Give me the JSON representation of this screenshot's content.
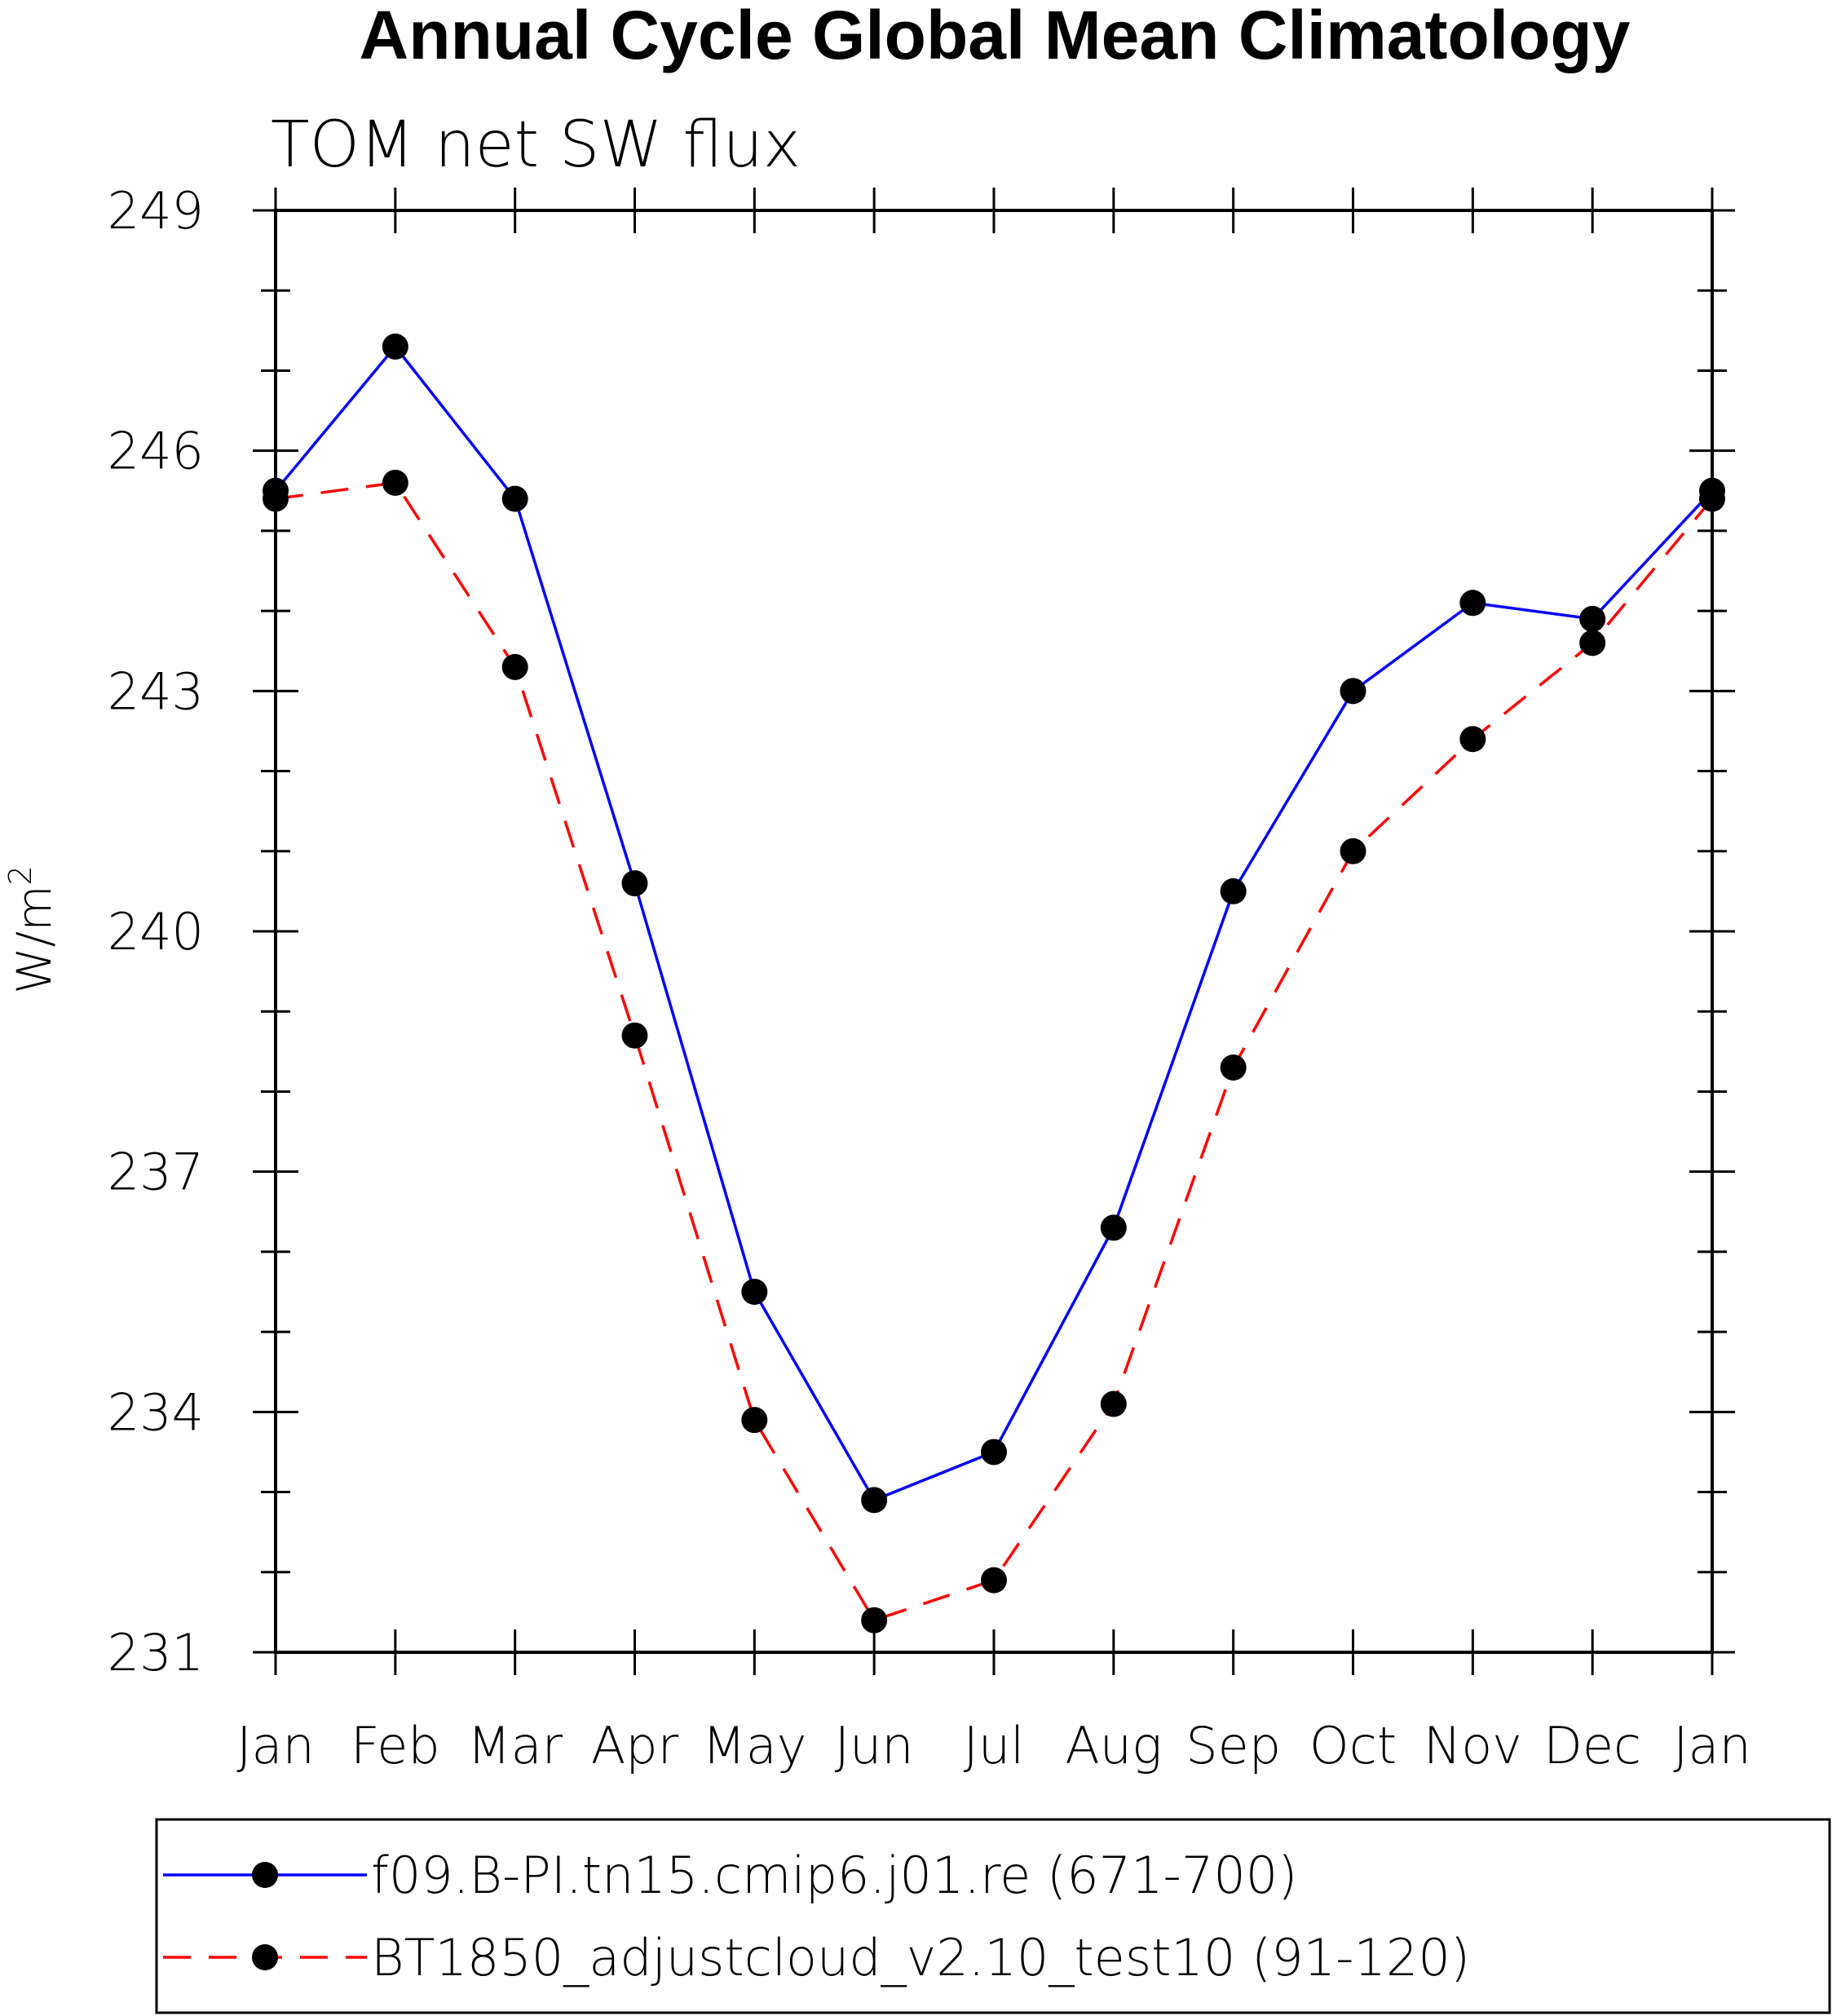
{
  "chart_data": {
    "type": "line",
    "title": "Annual Cycle Global Mean Climatology",
    "subtitle": "TOM net SW flux",
    "xlabel": "",
    "ylabel": "W/m",
    "ylabel_superscript": "2",
    "categories": [
      "Jan",
      "Feb",
      "Mar",
      "Apr",
      "May",
      "Jun",
      "Jul",
      "Aug",
      "Sep",
      "Oct",
      "Nov",
      "Dec",
      "Jan"
    ],
    "ylim": [
      231,
      249
    ],
    "yticks": [
      231,
      234,
      237,
      240,
      243,
      246,
      249
    ],
    "ytick_labels": [
      "231",
      "234",
      "237",
      "240",
      "243",
      "246",
      "249"
    ],
    "grid": false,
    "legend_position": "bottom",
    "series": [
      {
        "name": "f09.B-PI.tn15.cmip6.j01.re (671-700)",
        "color": "#0000ff",
        "dash": "solid",
        "marker": "circle",
        "values": [
          245.5,
          247.3,
          245.4,
          240.6,
          235.5,
          232.9,
          233.5,
          236.3,
          240.5,
          243.0,
          244.1,
          243.9,
          245.5
        ]
      },
      {
        "name": "BT1850_adjustcloud_v2.10_test10 (91-120)",
        "color": "#ff0000",
        "dash": "dashed",
        "marker": "circle",
        "values": [
          245.4,
          245.6,
          243.3,
          238.7,
          233.9,
          231.4,
          231.9,
          234.1,
          238.3,
          241.0,
          242.4,
          243.6,
          245.4
        ]
      }
    ]
  }
}
